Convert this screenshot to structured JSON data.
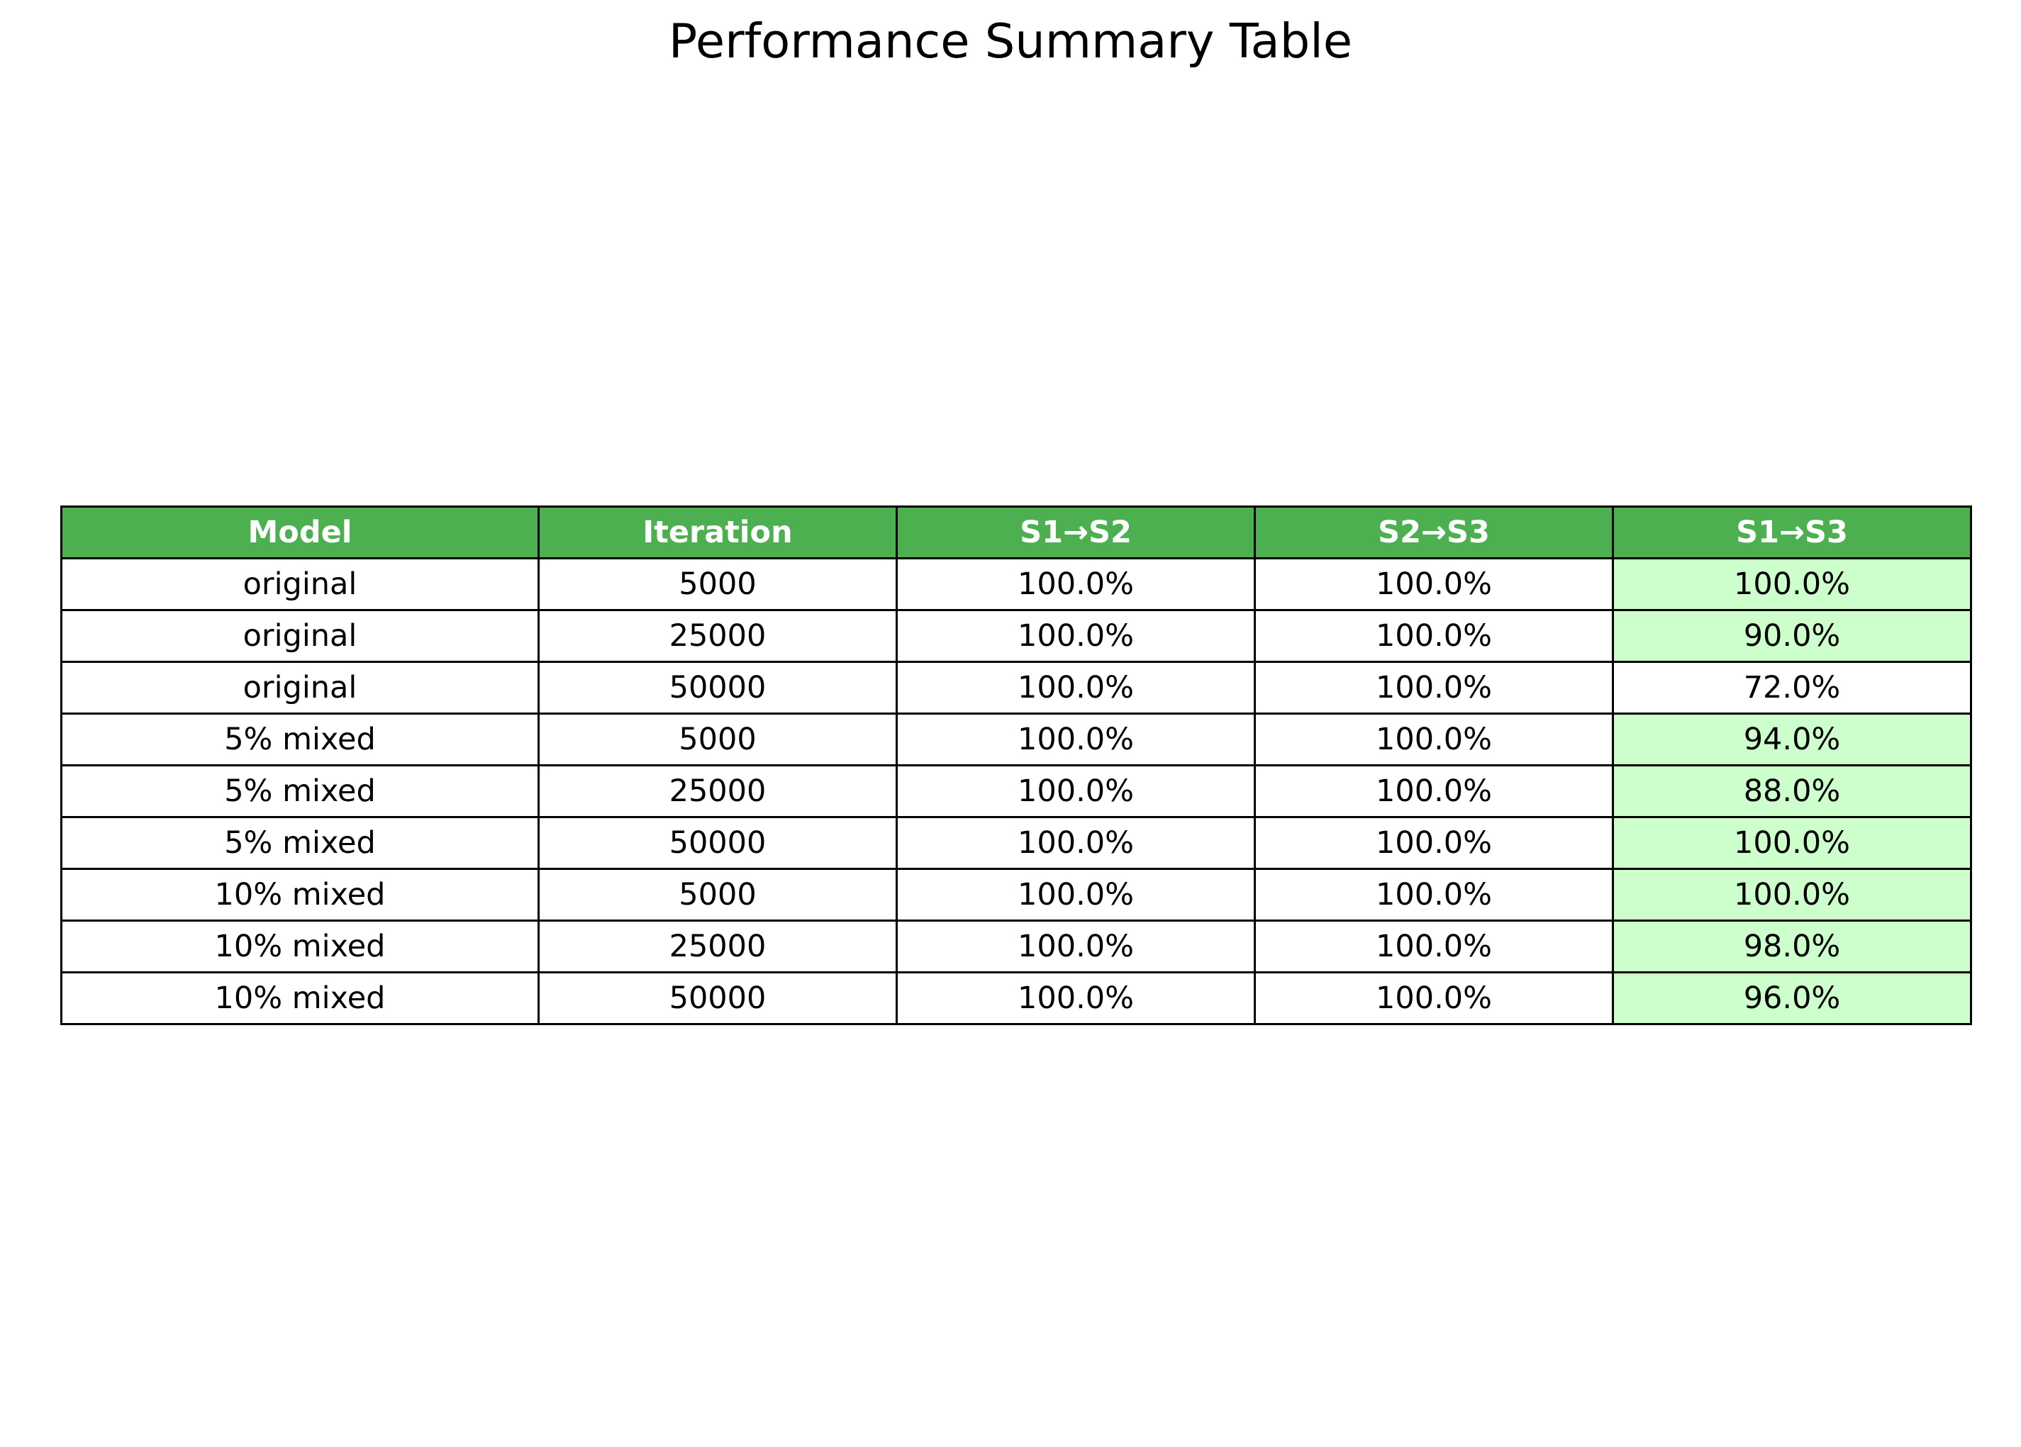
{
  "chart_data": {
    "type": "table",
    "title": "Performance Summary Table",
    "columns": [
      "Model",
      "Iteration",
      "S1→S2",
      "S2→S3",
      "S1→S3"
    ],
    "rows": [
      [
        "original",
        "5000",
        "100.0%",
        "100.0%",
        "100.0%"
      ],
      [
        "original",
        "25000",
        "100.0%",
        "100.0%",
        "90.0%"
      ],
      [
        "original",
        "50000",
        "100.0%",
        "100.0%",
        "72.0%"
      ],
      [
        "5% mixed",
        "5000",
        "100.0%",
        "100.0%",
        "94.0%"
      ],
      [
        "5% mixed",
        "25000",
        "100.0%",
        "100.0%",
        "88.0%"
      ],
      [
        "5% mixed",
        "50000",
        "100.0%",
        "100.0%",
        "100.0%"
      ],
      [
        "10% mixed",
        "5000",
        "100.0%",
        "100.0%",
        "100.0%"
      ],
      [
        "10% mixed",
        "25000",
        "100.0%",
        "100.0%",
        "98.0%"
      ],
      [
        "10% mixed",
        "50000",
        "100.0%",
        "100.0%",
        "96.0%"
      ]
    ],
    "highlighted_cells": [
      [
        true,
        true
      ],
      [
        true,
        true
      ],
      [
        true,
        false
      ],
      [
        true,
        true
      ],
      [
        true,
        true
      ],
      [
        true,
        true
      ],
      [
        true,
        true
      ],
      [
        true,
        true
      ],
      [
        true,
        true
      ]
    ],
    "highlight_column_index": 4,
    "colors": {
      "header_background": "#4caf50",
      "header_text": "#ffffff",
      "highlight_background": "#ccffcc",
      "cell_background": "#ffffff",
      "border": "#000000"
    }
  }
}
